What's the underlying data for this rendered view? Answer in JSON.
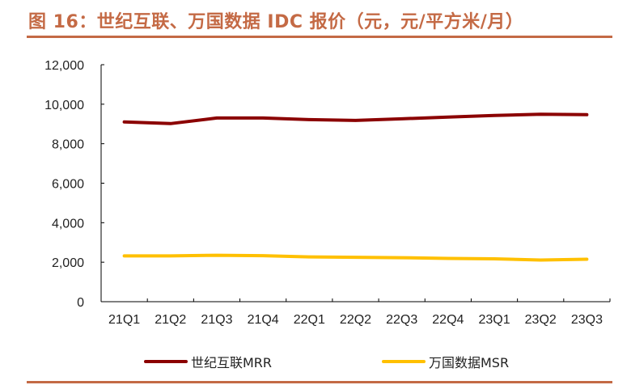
{
  "title": "图 16：世纪互联、万国数据 IDC 报价（元，元/平方米/月）",
  "chart_data": {
    "type": "line",
    "title": "图 16：世纪互联、万国数据 IDC 报价（元，元/平方米/月）",
    "xlabel": "",
    "ylabel": "",
    "categories": [
      "21Q1",
      "21Q2",
      "21Q3",
      "21Q4",
      "22Q1",
      "22Q2",
      "22Q3",
      "22Q4",
      "23Q1",
      "23Q2",
      "23Q3"
    ],
    "yticks": [
      0,
      2000,
      4000,
      6000,
      8000,
      10000,
      12000
    ],
    "ytick_labels": [
      "0",
      "2,000",
      "4,000",
      "6,000",
      "8,000",
      "10,000",
      "12,000"
    ],
    "ylim": [
      0,
      12000
    ],
    "grid": false,
    "legend_position": "bottom",
    "series": [
      {
        "name": "世纪互联MRR",
        "color": "#8B0000",
        "values": [
          9100,
          9020,
          9300,
          9300,
          9220,
          9180,
          9260,
          9350,
          9430,
          9490,
          9470
        ]
      },
      {
        "name": "万国数据MSR",
        "color": "#FFC000",
        "values": [
          2320,
          2320,
          2350,
          2330,
          2270,
          2250,
          2230,
          2190,
          2170,
          2110,
          2150
        ]
      }
    ]
  }
}
